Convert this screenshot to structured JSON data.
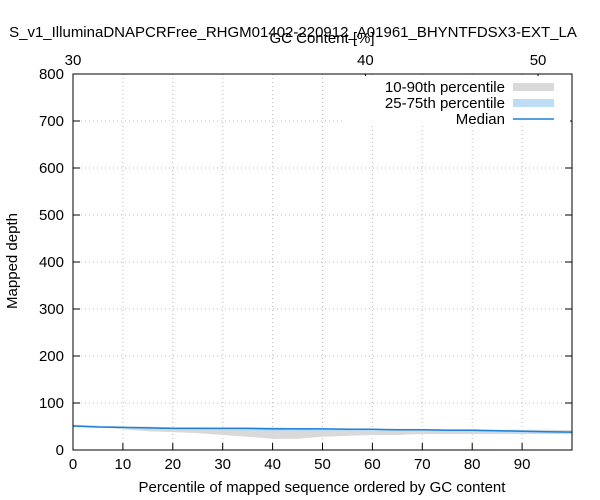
{
  "chart_data": {
    "type": "line",
    "title": "S_v1_IlluminaDNAPCRFree_RHGM01402-220912_A01961_BHYNTFDSX3-EXT_LA",
    "xlabel": "Percentile of mapped sequence ordered by GC content",
    "x2label": "GC Content [%]",
    "ylabel": "Mapped depth",
    "xlim": [
      0,
      100
    ],
    "ylim": [
      0,
      800
    ],
    "x_ticks": [
      0,
      10,
      20,
      30,
      40,
      50,
      60,
      70,
      80,
      90
    ],
    "y_ticks": [
      0,
      100,
      200,
      300,
      400,
      500,
      600,
      700,
      800
    ],
    "x2_ticks": [
      {
        "label": "30",
        "percentile": 0
      },
      {
        "label": "40",
        "percentile": 58.6
      },
      {
        "label": "50",
        "percentile": 93.2
      }
    ],
    "grid": true,
    "legend_position": "top-right",
    "colors": {
      "band_10_90": "#d9d9d9",
      "band_25_75": "#bfdcf5",
      "median": "#1f7fd9"
    },
    "x": [
      0,
      5,
      10,
      15,
      20,
      25,
      30,
      35,
      40,
      45,
      50,
      55,
      60,
      65,
      70,
      75,
      80,
      85,
      90,
      95,
      100
    ],
    "series": [
      {
        "name": "10-90th percentile",
        "lower": [
          50,
          48,
          44,
          40,
          38,
          36,
          32,
          28,
          24,
          24,
          28,
          30,
          32,
          32,
          34,
          34,
          34,
          34,
          34,
          34,
          34
        ],
        "upper": [
          54,
          52,
          50,
          50,
          48,
          48,
          48,
          48,
          48,
          47,
          46,
          46,
          45,
          45,
          45,
          44,
          44,
          43,
          43,
          43,
          42
        ]
      },
      {
        "name": "25-75th percentile",
        "lower": [
          50,
          49,
          46,
          44,
          43,
          42,
          42,
          41,
          40,
          40,
          40,
          40,
          40,
          40,
          40,
          39,
          38,
          37,
          36,
          36,
          36
        ],
        "upper": [
          52,
          51,
          50,
          49,
          48,
          48,
          47,
          47,
          47,
          46,
          46,
          45,
          44,
          44,
          44,
          43,
          43,
          42,
          42,
          41,
          40
        ]
      },
      {
        "name": "Median",
        "values": [
          51,
          49,
          48,
          47,
          46,
          46,
          46,
          46,
          45,
          45,
          45,
          44,
          44,
          43,
          43,
          42,
          42,
          41,
          40,
          39,
          38
        ]
      }
    ]
  }
}
